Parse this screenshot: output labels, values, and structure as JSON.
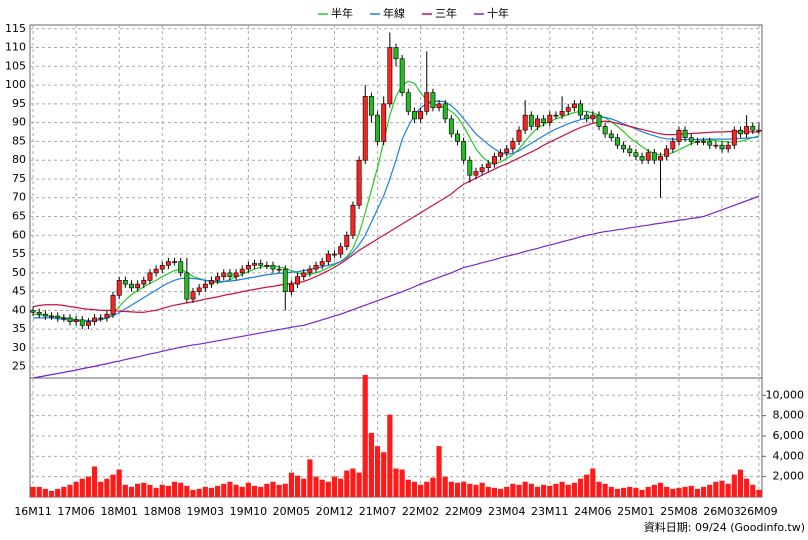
{
  "chart_data": {
    "type": "candlestick",
    "footer": "資料日期: 09/24 (Goodinfo.tw)",
    "categories": [
      "16M11",
      null,
      null,
      null,
      null,
      null,
      null,
      "17M06",
      null,
      null,
      null,
      null,
      null,
      null,
      "18M01",
      null,
      null,
      null,
      null,
      null,
      null,
      "18M08",
      null,
      null,
      null,
      null,
      null,
      null,
      "19M03",
      null,
      null,
      null,
      null,
      null,
      null,
      "19M10",
      null,
      null,
      null,
      null,
      null,
      null,
      "20M05",
      null,
      null,
      null,
      null,
      null,
      null,
      "20M12",
      null,
      null,
      null,
      null,
      null,
      null,
      "21M07",
      null,
      null,
      null,
      null,
      null,
      null,
      "22M02",
      null,
      null,
      null,
      null,
      null,
      null,
      "22M09",
      null,
      null,
      null,
      null,
      null,
      null,
      "23M04",
      null,
      null,
      null,
      null,
      null,
      null,
      "23M11",
      null,
      null,
      null,
      null,
      null,
      null,
      "24M06",
      null,
      null,
      null,
      null,
      null,
      null,
      "25M01",
      null,
      null,
      null,
      null,
      null,
      null,
      "25M08",
      null,
      null,
      null,
      null,
      null,
      null,
      "26M03",
      null,
      null,
      null,
      null,
      null,
      "26M09"
    ],
    "open": [
      40,
      39.5,
      39,
      38.5,
      38.5,
      38,
      38,
      37,
      37.5,
      36,
      37,
      38,
      38,
      39,
      44,
      48,
      47,
      46,
      47,
      48,
      50,
      51,
      52,
      53,
      53,
      50,
      43,
      45,
      46,
      47,
      48,
      49,
      50,
      49,
      50,
      51,
      52,
      52.5,
      52,
      52,
      51,
      51,
      45,
      47,
      49,
      50,
      51,
      52,
      53,
      55,
      55,
      57,
      60,
      68,
      80,
      97,
      92,
      85,
      95,
      110,
      107,
      98,
      93,
      91,
      93,
      98,
      94,
      95,
      91,
      87,
      85,
      80,
      76,
      77,
      78,
      79,
      81,
      82,
      83,
      85,
      88,
      92,
      89,
      91,
      90,
      92,
      92,
      93,
      94,
      95,
      92,
      91,
      92,
      89,
      87,
      86,
      84,
      83,
      82,
      81,
      80,
      82,
      80,
      81,
      83,
      85,
      88,
      86,
      85,
      85,
      85,
      84,
      84,
      83,
      84,
      88,
      87,
      89,
      88
    ],
    "high": [
      41,
      40.5,
      40,
      39.5,
      39.5,
      39,
      39,
      38.5,
      38.5,
      38,
      39,
      39,
      40,
      45,
      49,
      49,
      48,
      48,
      49,
      51,
      52,
      53,
      54,
      54,
      54,
      54,
      46,
      47,
      48,
      49,
      50,
      51,
      51,
      51,
      52,
      53,
      53.5,
      53.5,
      53,
      53,
      52,
      52,
      48,
      50,
      51,
      52,
      53,
      54,
      56,
      56,
      58,
      61,
      69,
      81,
      100,
      98,
      93,
      97,
      114,
      111,
      108,
      99,
      94,
      94,
      109,
      99,
      96,
      96,
      92,
      88,
      86,
      81,
      78,
      79,
      80,
      82,
      83,
      84,
      86,
      89,
      96,
      93,
      92,
      92,
      93,
      93,
      97,
      95,
      96,
      96,
      93,
      93,
      93,
      90,
      88,
      87,
      85,
      84,
      83,
      82,
      83,
      83,
      82,
      84,
      86,
      89,
      89,
      87,
      86,
      86,
      86,
      85,
      85,
      85,
      89,
      89,
      92,
      90,
      90
    ],
    "low": [
      38.5,
      38,
      37.5,
      37.5,
      37,
      37,
      36,
      36,
      35,
      35,
      36,
      37,
      37,
      38,
      43,
      46,
      45,
      45,
      46,
      47,
      49,
      50,
      51,
      52,
      49,
      42,
      42,
      44,
      45,
      46,
      47,
      48,
      48,
      48,
      49,
      50,
      51,
      51,
      51,
      50,
      50,
      40,
      44,
      46,
      48,
      49,
      50,
      51,
      52,
      54,
      54,
      56,
      59,
      67,
      79,
      90,
      84,
      84,
      94,
      105,
      97,
      92,
      90,
      90,
      92,
      93,
      93,
      90,
      86,
      84,
      79,
      74,
      75,
      76,
      77,
      78,
      80,
      81,
      82,
      84,
      87,
      88,
      88,
      89,
      89,
      91,
      91,
      92,
      93,
      91,
      90,
      90,
      88,
      86,
      85,
      83,
      82,
      81,
      80,
      79,
      79,
      79,
      70,
      80,
      82,
      84,
      85,
      84,
      84,
      84,
      83,
      83,
      82,
      82,
      83,
      86,
      86,
      87,
      87
    ],
    "close": [
      39.5,
      39,
      38.5,
      38.5,
      38,
      38,
      37,
      37.5,
      36,
      37,
      38,
      38,
      39,
      44,
      48,
      47,
      46,
      47,
      48,
      50,
      51,
      52,
      53,
      53,
      50,
      43,
      45,
      46,
      47,
      48,
      49,
      50,
      49,
      50,
      51,
      52,
      52.5,
      52,
      52,
      51,
      51,
      45,
      47,
      49,
      50,
      51,
      52,
      53,
      55,
      55,
      57,
      60,
      68,
      80,
      97,
      92,
      85,
      95,
      110,
      107,
      98,
      93,
      91,
      93,
      98,
      94,
      95,
      91,
      87,
      85,
      80,
      76,
      77,
      78,
      79,
      81,
      82,
      83,
      85,
      88,
      92,
      89,
      91,
      90,
      92,
      92,
      93,
      94,
      95,
      92,
      91,
      92,
      89,
      87,
      86,
      84,
      83,
      82,
      81,
      80,
      82,
      80,
      81,
      83,
      85,
      88,
      86,
      85,
      85,
      85,
      84,
      84,
      83,
      84,
      88,
      87,
      89,
      88,
      88
    ],
    "up_color": "#ff2020",
    "down_color": "#22bb22",
    "ylim": [
      22,
      116
    ],
    "yticks": [
      25,
      30,
      35,
      40,
      45,
      50,
      55,
      60,
      65,
      70,
      75,
      80,
      85,
      90,
      95,
      100,
      105,
      110,
      115
    ],
    "grid": true,
    "series": [
      {
        "name": "半年",
        "color": "#22cc22",
        "values": [
          39,
          38.8,
          38.6,
          38.5,
          38.3,
          38.1,
          37.8,
          37.6,
          37.4,
          37.3,
          37.4,
          37.6,
          38,
          39.2,
          41,
          42.8,
          44.2,
          45.3,
          46.3,
          47.2,
          48,
          49,
          49.8,
          50.6,
          51,
          50.2,
          49,
          48.5,
          48,
          47.6,
          47.4,
          47.6,
          48.2,
          48.9,
          49.6,
          50.3,
          51,
          51.5,
          51.8,
          51.8,
          51.6,
          51.2,
          50.6,
          50,
          49.6,
          49.6,
          50,
          50.6,
          51.4,
          52.2,
          53,
          54.3,
          56.5,
          60.5,
          66,
          72,
          78,
          85,
          92,
          97,
          100,
          101,
          100.5,
          98,
          96,
          95,
          94.5,
          94,
          93,
          91.5,
          89,
          86,
          83,
          81,
          79.5,
          79,
          79.5,
          80.5,
          81.5,
          83,
          85,
          87,
          88.5,
          89.5,
          90.3,
          91,
          91.6,
          92.2,
          92.7,
          93,
          93,
          92.6,
          92,
          91.3,
          90.2,
          89,
          87.6,
          86,
          84.8,
          83.6,
          82.5,
          81.8,
          81.4,
          81.6,
          82,
          82.8,
          83.6,
          84.4,
          85,
          85.3,
          85.4,
          85.2,
          85,
          84.8,
          84.8,
          85,
          85.5,
          86,
          86.5
        ]
      },
      {
        "name": "年線",
        "color": "#1e7fe0",
        "values": [
          38,
          38,
          38,
          38,
          37.8,
          37.6,
          37.4,
          37.3,
          37.2,
          37.2,
          37.3,
          37.5,
          38,
          38.6,
          39.4,
          40.4,
          41.4,
          42.4,
          43.4,
          44.4,
          45.4,
          46.4,
          47.3,
          48,
          48.5,
          48.6,
          48.5,
          48.3,
          48,
          47.8,
          47.7,
          47.7,
          47.8,
          48,
          48.3,
          48.6,
          48.9,
          49.2,
          49.5,
          49.7,
          49.9,
          50,
          50.2,
          50.3,
          50.6,
          50.9,
          51.3,
          51.6,
          52,
          52.4,
          53,
          54,
          55.5,
          57.5,
          60,
          63.5,
          67,
          70.5,
          75,
          80,
          85.6,
          89,
          92,
          94,
          95,
          95.5,
          95.8,
          95.5,
          94.5,
          93,
          91,
          89,
          87,
          85.6,
          84.2,
          83,
          82,
          81.6,
          81.8,
          82.5,
          83.5,
          84.5,
          85.5,
          86.5,
          87.5,
          88.3,
          89,
          89.7,
          90.3,
          90.8,
          91.2,
          91.5,
          91.5,
          91.4,
          91,
          90.4,
          89.7,
          89,
          88.3,
          87.6,
          87,
          86.5,
          86,
          85.7,
          85.6,
          85.5,
          85.5,
          85.5,
          85.5,
          85.6,
          85.6,
          85.6,
          85.6,
          85.6,
          85.7,
          85.8,
          85.9,
          86,
          86.2
        ]
      },
      {
        "name": "三年",
        "color": "#cc1144",
        "values": [
          41,
          41.3,
          41.5,
          41.5,
          41.5,
          41.3,
          41,
          40.8,
          40.5,
          40.3,
          40.2,
          40,
          40,
          40,
          39.8,
          39.7,
          39.6,
          39.5,
          39.5,
          39.8,
          40,
          40.5,
          41,
          41.4,
          41.7,
          42,
          42.3,
          42.6,
          43,
          43.3,
          43.6,
          44,
          44.3,
          44.6,
          45,
          45.3,
          45.6,
          45.9,
          46.2,
          46.4,
          46.7,
          47,
          47.2,
          47.4,
          47.7,
          48.3,
          49,
          49.8,
          50.6,
          51.5,
          52.5,
          53.6,
          54.8,
          56,
          57,
          58,
          59,
          60,
          61,
          62,
          63,
          64,
          65,
          66,
          67,
          68,
          69,
          70,
          71,
          72.4,
          73.6,
          74.4,
          75.2,
          76,
          76.8,
          77.6,
          78.4,
          79,
          79.8,
          80.6,
          81.4,
          82.2,
          83,
          84,
          84.8,
          85.6,
          86.4,
          87.2,
          88,
          88.7,
          89.3,
          89.8,
          90.2,
          90.4,
          90.2,
          89.8,
          89.4,
          89,
          88.6,
          88.2,
          87.8,
          87.4,
          87,
          86.8,
          86.8,
          86.9,
          87,
          87.1,
          87.2,
          87.3,
          87.4,
          87.5,
          87.5,
          87.6,
          87.6,
          87.6,
          87.6,
          87.5,
          87.5
        ]
      },
      {
        "name": "十年",
        "color": "#7a22cc",
        "values": [
          22,
          22.3,
          22.6,
          22.9,
          23.2,
          23.5,
          23.8,
          24.1,
          24.5,
          24.8,
          25.1,
          25.5,
          25.8,
          26.2,
          26.5,
          26.9,
          27.3,
          27.6,
          28,
          28.4,
          28.7,
          29.1,
          29.5,
          29.8,
          30.2,
          30.5,
          30.8,
          31,
          31.3,
          31.6,
          31.9,
          32.2,
          32.5,
          32.8,
          33.1,
          33.4,
          33.7,
          34,
          34.3,
          34.6,
          34.9,
          35.2,
          35.5,
          35.8,
          36,
          36.5,
          37,
          37.5,
          38,
          38.5,
          39,
          39.6,
          40.2,
          40.8,
          41.4,
          42,
          42.6,
          43.2,
          43.8,
          44.4,
          45,
          45.6,
          46.3,
          47,
          47.6,
          48.2,
          48.8,
          49.4,
          50,
          50.7,
          51.4,
          51.8,
          52.2,
          52.7,
          53.1,
          53.5,
          54,
          54.4,
          54.8,
          55.2,
          55.7,
          56.1,
          56.5,
          57,
          57.4,
          57.8,
          58.3,
          58.7,
          59.1,
          59.6,
          60,
          60.3,
          60.7,
          61,
          61.2,
          61.5,
          61.7,
          62,
          62.2,
          62.5,
          62.7,
          63,
          63.2,
          63.5,
          63.7,
          64,
          64.2,
          64.5,
          64.7,
          65,
          65.6,
          66.2,
          66.8,
          67.4,
          68,
          68.6,
          69.2,
          69.8,
          70.4
        ]
      }
    ],
    "volume": {
      "color": "#ff1a1a",
      "ylim": [
        0,
        11700
      ],
      "yticks": [
        {
          "value": 2000,
          "label": "2,000"
        },
        {
          "value": 4000,
          "label": "4,000"
        },
        {
          "value": 6000,
          "label": "6,000"
        },
        {
          "value": 8000,
          "label": "8,000"
        },
        {
          "value": 10000,
          "label": "10,000"
        }
      ],
      "values": [
        1000,
        1000,
        800,
        600,
        800,
        1000,
        1200,
        1500,
        1800,
        2000,
        3000,
        1500,
        1800,
        2200,
        2700,
        1200,
        1000,
        1300,
        1400,
        1200,
        900,
        1200,
        1100,
        1500,
        1400,
        1100,
        700,
        800,
        1000,
        900,
        1100,
        1300,
        1500,
        1200,
        1000,
        1400,
        1100,
        1000,
        1300,
        1500,
        1200,
        1300,
        2400,
        2100,
        1800,
        3700,
        2000,
        1700,
        1500,
        2000,
        1800,
        2600,
        2800,
        2400,
        12000,
        6300,
        5000,
        4400,
        8100,
        2800,
        2700,
        1700,
        1500,
        1200,
        1500,
        1900,
        5000,
        2000,
        1500,
        1400,
        1500,
        1300,
        1200,
        1400,
        1000,
        900,
        800,
        1000,
        1300,
        1200,
        1500,
        1300,
        1000,
        1200,
        1100,
        1300,
        1500,
        1200,
        1400,
        1800,
        2200,
        2800,
        1500,
        1300,
        1000,
        800,
        900,
        1000,
        900,
        700,
        1000,
        1200,
        1400,
        1000,
        800,
        900,
        1000,
        1100,
        800,
        1000,
        1200,
        1500,
        1600,
        1300,
        2200,
        2700,
        1800,
        1200,
        700
      ]
    }
  }
}
